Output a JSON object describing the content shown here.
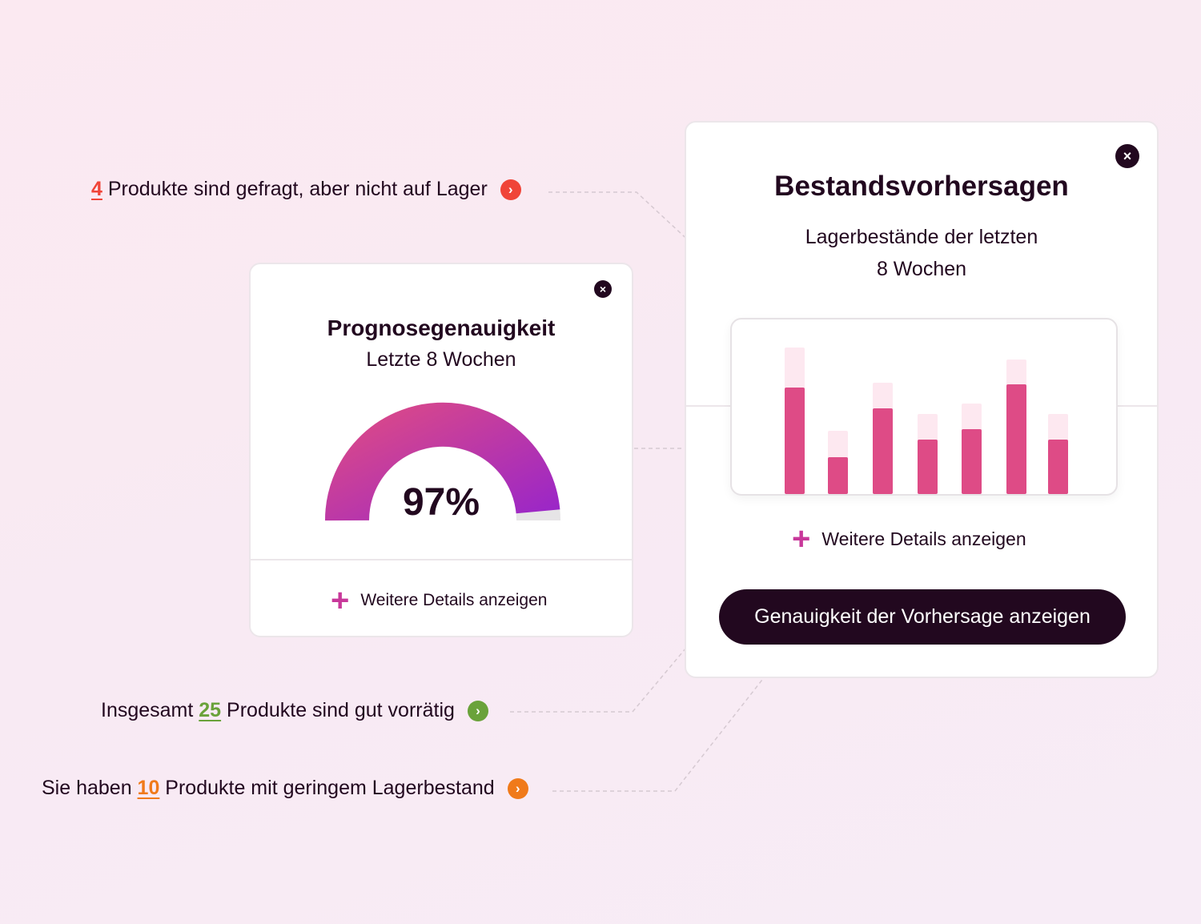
{
  "callouts": [
    {
      "prefix": "",
      "number": "4",
      "suffix": " Produkte sind gefragt, aber nicht auf Lager",
      "color": "#f04438"
    },
    {
      "prefix": "Insgesamt ",
      "number": "25",
      "suffix": " Produkte sind gut vorrätig",
      "color": "#6aa23a"
    },
    {
      "prefix": "Sie haben ",
      "number": "10",
      "suffix": " Produkte mit geringem Lagerbestand",
      "color": "#f07a1a"
    }
  ],
  "accuracy_card": {
    "title": "Prognosegenauigkeit",
    "subtitle": "Letzte 8 Wochen",
    "value": "97%",
    "value_fraction": 0.97,
    "details_label": "Weitere Details anzeigen",
    "close_icon": "close-icon"
  },
  "forecast_card": {
    "title": "Bestandsvorhersagen",
    "subtitle_line1": "Lagerbestände der letzten",
    "subtitle_line2": "8 Wochen",
    "details_label": "Weitere Details anzeigen",
    "button_label": "Genauigkeit der Vorhersage anzeigen",
    "close_icon": "close-icon"
  },
  "colors": {
    "accent": "#c8389a",
    "bar": "#de4b86",
    "bar_light": "#fde8f0",
    "dark": "#22081f",
    "gauge_start": "#d9488a",
    "gauge_end": "#9a26c8"
  },
  "chart_data": {
    "type": "bar",
    "stacked": true,
    "series": [
      {
        "values": [
          133,
          46,
          107,
          68,
          81,
          137,
          68
        ]
      },
      {
        "values": [
          50,
          33,
          32,
          32,
          32,
          31,
          32
        ]
      }
    ],
    "grid": false,
    "axes": false
  }
}
